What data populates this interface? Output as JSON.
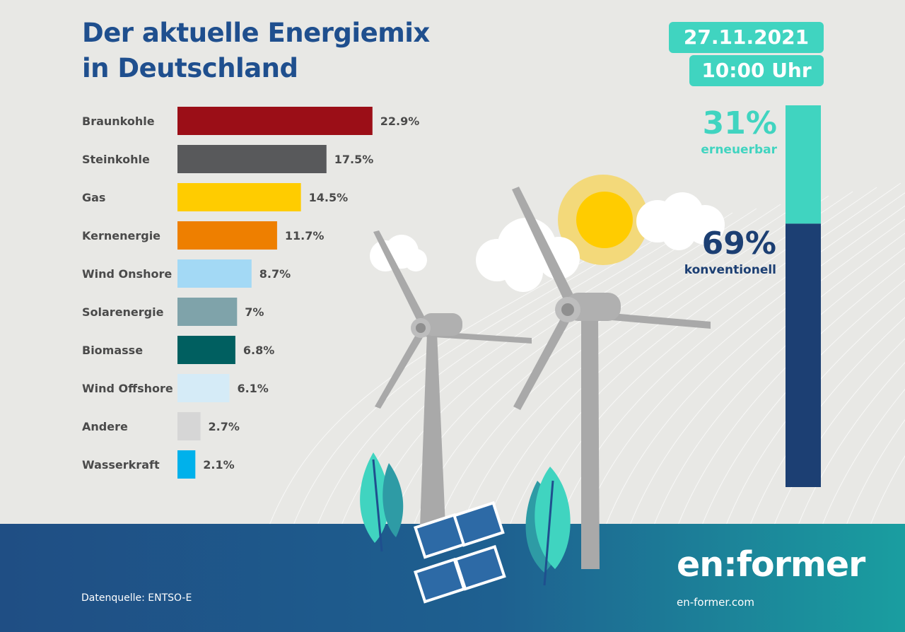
{
  "title": {
    "line1": "Der aktuelle Energiemix",
    "line2": "in Deutschland"
  },
  "date": "27.11.2021",
  "time": "10:00 Uhr",
  "summary": {
    "renewable": {
      "percent": "31%",
      "label": "erneuerbar",
      "value": 31
    },
    "conventional": {
      "percent": "69%",
      "label": "konventionell",
      "value": 69
    }
  },
  "chart_data": {
    "type": "bar",
    "orientation": "horizontal",
    "title": "Der aktuelle Energiemix in Deutschland",
    "categories": [
      "Braunkohle",
      "Steinkohle",
      "Gas",
      "Kernenergie",
      "Wind Onshore",
      "Solarenergie",
      "Biomasse",
      "Wind Offshore",
      "Andere",
      "Wasserkraft"
    ],
    "values": [
      22.9,
      17.5,
      14.5,
      11.7,
      8.7,
      7,
      6.8,
      6.1,
      2.7,
      2.1
    ],
    "value_labels": [
      "22.9%",
      "17.5%",
      "14.5%",
      "11.7%",
      "8.7%",
      "7%",
      "6.8%",
      "6.1%",
      "2.7%",
      "2.1%"
    ],
    "colors": [
      "#9b0e17",
      "#58595b",
      "#ffcc00",
      "#ee7f00",
      "#a3d9f5",
      "#7fa3aa",
      "#005f60",
      "#d5ebf7",
      "#d6d6d6",
      "#00b1eb"
    ],
    "xlim": [
      0,
      23
    ],
    "unit": "%"
  },
  "colors": {
    "accent": "#40d4c0",
    "dark_blue": "#1c3f73",
    "title": "#1f4f8e"
  },
  "footer": {
    "source": "Datenquelle: ENTSO-E",
    "brand": "en:former",
    "website": "en-former.com"
  }
}
